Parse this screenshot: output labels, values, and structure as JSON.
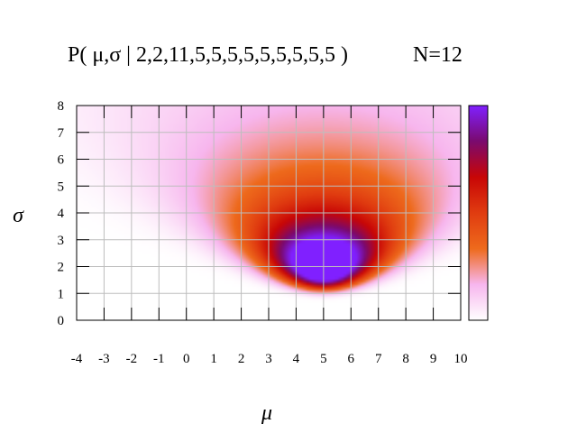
{
  "chart_data": {
    "type": "heatmap",
    "title_main": "P( μ,σ | 2,2,11,5,5,5,5,5,5,5,5,5 )",
    "title_n": "N=12",
    "xlabel": "μ",
    "ylabel": "σ",
    "xlim": [
      -4,
      10
    ],
    "ylim": [
      0,
      8
    ],
    "x_ticks": [
      "-4",
      "-3",
      "-2",
      "-1",
      "0",
      "1",
      "2",
      "3",
      "4",
      "5",
      "6",
      "7",
      "8",
      "9",
      "10"
    ],
    "y_ticks": [
      "0",
      "1",
      "2",
      "3",
      "4",
      "5",
      "6",
      "7",
      "8"
    ],
    "grid": true,
    "peak": {
      "mu": 5.0,
      "sigma": 3.1
    },
    "observations": [
      2,
      2,
      11,
      5,
      5,
      5,
      5,
      5,
      5,
      5,
      5,
      5
    ],
    "colormap": [
      "#ffffff",
      "#f7b6ee",
      "#ee6a1c",
      "#e03c10",
      "#c80606",
      "#7a0a6e",
      "#8020ff"
    ],
    "colorbar": true
  }
}
